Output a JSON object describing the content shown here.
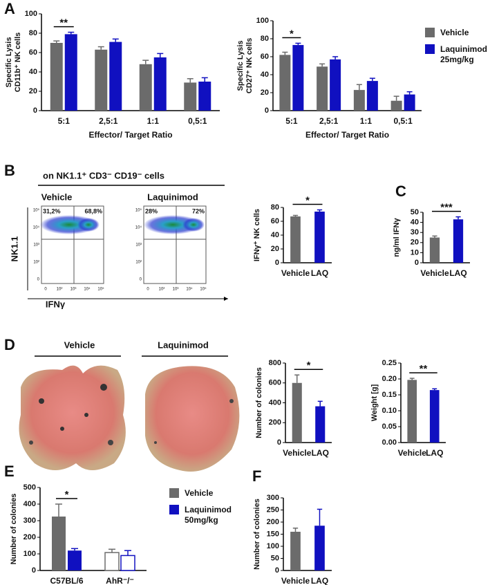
{
  "panel_labels": [
    "A",
    "B",
    "C",
    "D",
    "E",
    "F"
  ],
  "flow": {
    "header": "on NK1.1⁺ CD3⁻ CD19⁻ cells",
    "y_axis": "NK1.1",
    "x_axis": "IFNγ",
    "plots": [
      {
        "title": "Vehicle",
        "left": "31,2%",
        "right": "68,8%"
      },
      {
        "title": "Laquinimod",
        "left": "28%",
        "right": "72%"
      }
    ],
    "xticks": [
      "0",
      "10²",
      "10³",
      "10⁴",
      "10⁵"
    ],
    "yticks": [
      "0",
      "10²",
      "10³",
      "10⁴",
      "10⁵"
    ]
  },
  "lungs": {
    "labels": [
      "Vehicle",
      "Laquinimod"
    ]
  },
  "chart_data": [
    {
      "type": "bar",
      "ylabel": [
        "Specific Lysis",
        "CD11b⁺ NK cells"
      ],
      "xlabel": "Effector/ Target Ratio",
      "categories": [
        "5:1",
        "2,5:1",
        "1:1",
        "0,5:1"
      ],
      "series": [
        {
          "color": "#6b6b6b",
          "values": [
            70,
            63,
            48,
            29
          ],
          "errors": [
            2,
            3,
            4,
            4
          ]
        },
        {
          "color": "#1010c0",
          "values": [
            79,
            71,
            55,
            30
          ],
          "errors": [
            2,
            3,
            4,
            4
          ]
        }
      ],
      "ylim": [
        0,
        100
      ],
      "yticks": [
        0,
        20,
        40,
        60,
        80,
        100
      ],
      "significance": "**"
    },
    {
      "type": "bar",
      "ylabel": [
        "Specific Lysis",
        "CD27⁺ NK cells"
      ],
      "xlabel": "Effector/ Target Ratio",
      "categories": [
        "5:1",
        "2,5:1",
        "1:1",
        "0,5:1"
      ],
      "series": [
        {
          "name": "Vehicle",
          "color": "#6b6b6b",
          "values": [
            62,
            49,
            23,
            11
          ],
          "errors": [
            3,
            3,
            6,
            5
          ]
        },
        {
          "name": "Laquinimod\n25mg/kg",
          "color": "#1010c0",
          "values": [
            73,
            57,
            33,
            18
          ],
          "errors": [
            2,
            3,
            3,
            3
          ]
        }
      ],
      "ylim": [
        0,
        100
      ],
      "yticks": [
        0,
        20,
        40,
        60,
        80,
        100
      ],
      "significance": "*",
      "legend": true
    },
    {
      "type": "bar",
      "ylabel": [
        "IFNγ⁺ NK cells"
      ],
      "categories": [
        "Vehicle",
        "LAQ"
      ],
      "values": [
        67,
        74
      ],
      "errors": [
        1.5,
        2.5
      ],
      "colors": [
        "#6b6b6b",
        "#1010c0"
      ],
      "ylim": [
        0,
        80
      ],
      "yticks": [
        0,
        20,
        40,
        60,
        80
      ],
      "significance": "*"
    },
    {
      "type": "bar",
      "ylabel": [
        "ng/ml IFNγ"
      ],
      "categories": [
        "Vehicle",
        "LAQ"
      ],
      "values": [
        25,
        43
      ],
      "errors": [
        1.5,
        2.5
      ],
      "colors": [
        "#6b6b6b",
        "#1010c0"
      ],
      "ylim": [
        0,
        50
      ],
      "yticks": [
        0,
        10,
        20,
        30,
        40,
        50
      ],
      "significance": "***"
    },
    {
      "type": "bar",
      "ylabel": [
        "Number of colonies"
      ],
      "categories": [
        "Vehicle",
        "LAQ"
      ],
      "values": [
        600,
        365
      ],
      "errors": [
        80,
        50
      ],
      "colors": [
        "#6b6b6b",
        "#1010c0"
      ],
      "ylim": [
        0,
        800
      ],
      "yticks": [
        0,
        200,
        400,
        600,
        800
      ],
      "significance": "*"
    },
    {
      "type": "bar",
      "ylabel": [
        "Weight [g]"
      ],
      "categories": [
        "Vehicle",
        "LAQ"
      ],
      "values": [
        0.197,
        0.165
      ],
      "errors": [
        0.005,
        0.004
      ],
      "colors": [
        "#6b6b6b",
        "#1010c0"
      ],
      "ylim": [
        0,
        0.25
      ],
      "yticks": [
        {
          "value": 0,
          "label": "0.00"
        },
        0.05,
        {
          "value": 0.1,
          "label": "0.10"
        },
        0.15,
        {
          "value": 0.2,
          "label": "0.20"
        },
        0.25
      ],
      "significance": "**"
    },
    {
      "type": "bar",
      "ylabel": [
        "Number of colonies"
      ],
      "categories": [
        "C57BL/6",
        "AhR⁻/⁻"
      ],
      "category_fill": [
        "solid",
        "open"
      ],
      "series": [
        {
          "name": "Vehicle",
          "color": "#6b6b6b",
          "values": [
            325,
            108
          ],
          "errors": [
            75,
            20
          ]
        },
        {
          "name": "Laquinimod\n50mg/kg",
          "color": "#1010c0",
          "values": [
            120,
            90
          ],
          "errors": [
            12,
            30
          ]
        }
      ],
      "ylim": [
        0,
        500
      ],
      "yticks": [
        0,
        100,
        200,
        300,
        400,
        500
      ],
      "significance": "*",
      "legend": true
    },
    {
      "type": "bar",
      "ylabel": [
        "Number of colonies"
      ],
      "categories": [
        "Vehicle",
        "LAQ"
      ],
      "values": [
        160,
        185
      ],
      "errors": [
        15,
        68
      ],
      "colors": [
        "#6b6b6b",
        "#1010c0"
      ],
      "ylim": [
        0,
        300
      ],
      "yticks": [
        0,
        50,
        100,
        150,
        200,
        250,
        300
      ]
    }
  ]
}
